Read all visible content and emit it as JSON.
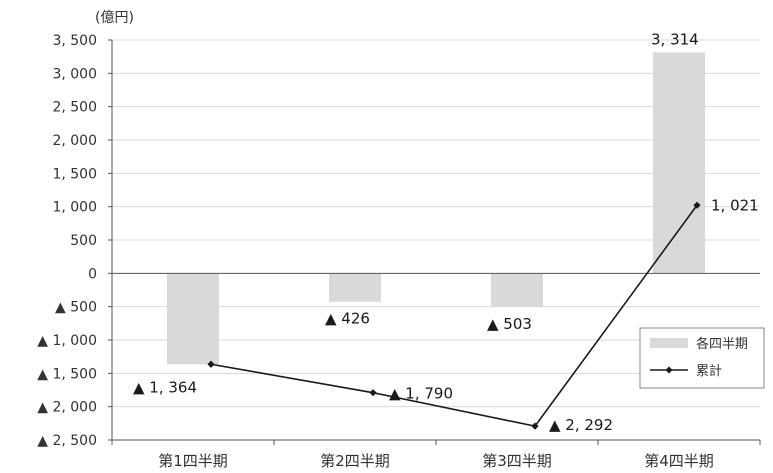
{
  "chart_data": {
    "type": "bar",
    "unit_label": "(億円)",
    "categories": [
      "第1四半期",
      "第2四半期",
      "第3四半期",
      "第4四半期"
    ],
    "series": [
      {
        "name": "各四半期",
        "kind": "bar",
        "color": "#d9d9d9",
        "values": [
          -1364,
          -426,
          -503,
          3314
        ],
        "labels": [
          "▲ 1, 364",
          "▲ 426",
          "▲ 503",
          "3, 314"
        ]
      },
      {
        "name": "累計",
        "kind": "line",
        "color": "#1a1a1a",
        "values": [
          -1364,
          -1790,
          -2292,
          1021
        ],
        "labels": [
          "",
          "▲ 1, 790",
          "▲ 2, 292",
          "1, 021"
        ]
      }
    ],
    "ylim": [
      -2500,
      3500
    ],
    "yticks": [
      3500,
      3000,
      2500,
      2000,
      1500,
      1000,
      500,
      0,
      -500,
      -1000,
      -1500,
      -2000,
      -2500
    ],
    "ytick_labels": [
      "3, 500",
      "3, 000",
      "2, 500",
      "2, 000",
      "1, 500",
      "1, 000",
      "500",
      "0",
      "▲ 500",
      "▲ 1, 000",
      "▲ 1, 500",
      "▲ 2, 000",
      "▲ 2, 500"
    ],
    "grid": true,
    "legend_position": "right"
  }
}
